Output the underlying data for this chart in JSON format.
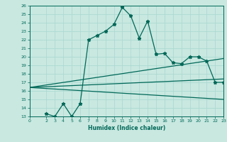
{
  "xlabel": "Humidex (Indice chaleur)",
  "ylabel": "",
  "bg_color": "#c8e8e0",
  "grid_color": "#a8d8d0",
  "line_color": "#006858",
  "xlim": [
    0,
    23
  ],
  "ylim": [
    13,
    26
  ],
  "xticks": [
    0,
    2,
    3,
    4,
    5,
    6,
    7,
    8,
    9,
    10,
    11,
    12,
    13,
    14,
    15,
    16,
    17,
    18,
    19,
    20,
    21,
    22,
    23
  ],
  "yticks": [
    13,
    14,
    15,
    16,
    17,
    18,
    19,
    20,
    21,
    22,
    23,
    24,
    25,
    26
  ],
  "line1_x": [
    2,
    3,
    4,
    5,
    6,
    7,
    8,
    9,
    10,
    11,
    12,
    13,
    14,
    15,
    16,
    17,
    18,
    19,
    20,
    21,
    22,
    23
  ],
  "line1_y": [
    13.3,
    13.0,
    14.5,
    13.0,
    14.5,
    22.0,
    22.5,
    23.0,
    23.8,
    25.8,
    24.8,
    22.2,
    24.2,
    20.3,
    20.4,
    19.3,
    19.2,
    20.0,
    20.0,
    19.5,
    17.0,
    17.0
  ],
  "line2_x": [
    0,
    23
  ],
  "line2_y": [
    16.4,
    15.0
  ],
  "line3_x": [
    0,
    23
  ],
  "line3_y": [
    16.4,
    19.8
  ],
  "line4_x": [
    0,
    23
  ],
  "line4_y": [
    16.4,
    17.4
  ]
}
